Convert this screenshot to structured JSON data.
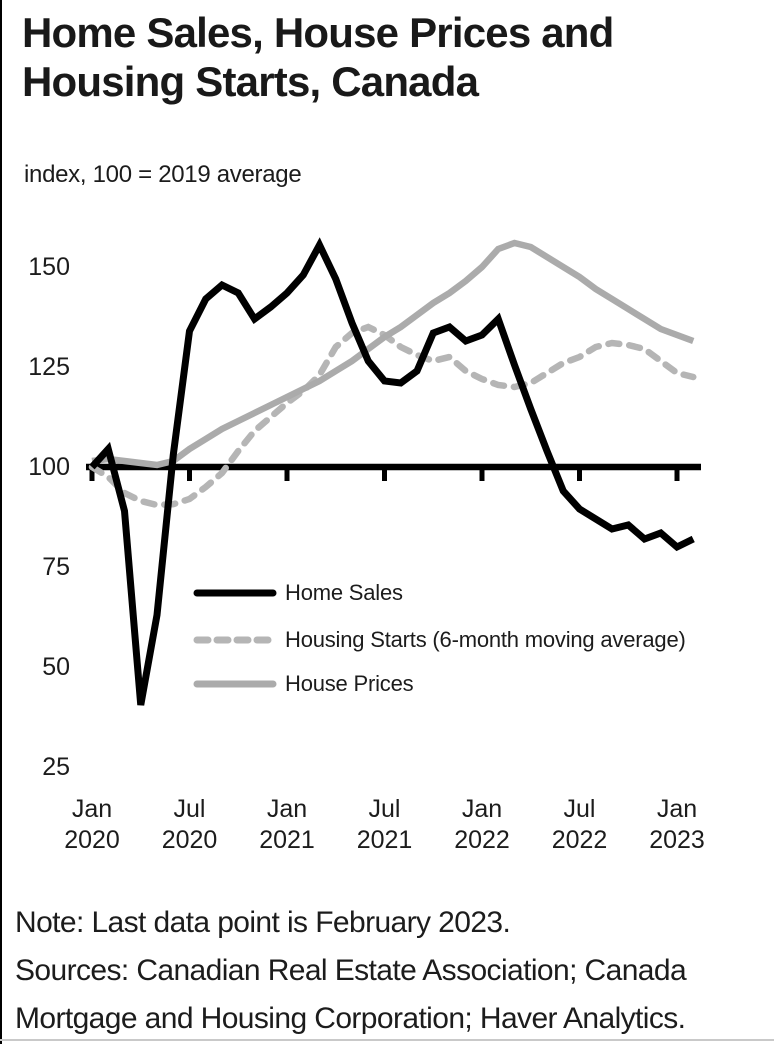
{
  "header": {
    "title_line1": "Home Sales, House Prices and",
    "title_line2": "Housing Starts, Canada",
    "subtitle": "index, 100 = 2019 average"
  },
  "footer": {
    "note": "Note: Last data point is February 2023.",
    "sources_line1": "Sources: Canadian Real Estate Association; Canada",
    "sources_line2": "Mortgage and Housing Corporation; Haver Analytics."
  },
  "colors": {
    "text": "#1c1c1c",
    "home_sales": "#000000",
    "housing_starts": "#b5b5b5",
    "house_prices": "#ababab",
    "axis": "#000000",
    "bottom_rule": "#c9c9c9"
  },
  "chart_data": {
    "type": "line",
    "title": "Home Sales, House Prices and Housing Starts, Canada",
    "unit_label": "index, 100 = 2019 average",
    "baseline": 100,
    "ylim": [
      25,
      160
    ],
    "grid": false,
    "legend_position": "inside-bottom-left",
    "y_ticks": [
      150,
      125,
      100,
      75,
      50,
      25
    ],
    "x_ticks": [
      {
        "month": "Jan",
        "year": "2020"
      },
      {
        "month": "Jul",
        "year": "2020"
      },
      {
        "month": "Jan",
        "year": "2021"
      },
      {
        "month": "Jul",
        "year": "2021"
      },
      {
        "month": "Jan",
        "year": "2022"
      },
      {
        "month": "Jul",
        "year": "2022"
      },
      {
        "month": "Jan",
        "year": "2023"
      }
    ],
    "months": [
      "2020-01",
      "2020-02",
      "2020-03",
      "2020-04",
      "2020-05",
      "2020-06",
      "2020-07",
      "2020-08",
      "2020-09",
      "2020-10",
      "2020-11",
      "2020-12",
      "2021-01",
      "2021-02",
      "2021-03",
      "2021-04",
      "2021-05",
      "2021-06",
      "2021-07",
      "2021-08",
      "2021-09",
      "2021-10",
      "2021-11",
      "2021-12",
      "2022-01",
      "2022-02",
      "2022-03",
      "2022-04",
      "2022-05",
      "2022-06",
      "2022-07",
      "2022-08",
      "2022-09",
      "2022-10",
      "2022-11",
      "2022-12",
      "2023-01",
      "2023-02"
    ],
    "series": [
      {
        "name": "Home Sales",
        "style": "solid",
        "color_key": "home_sales",
        "values": [
          100,
          104.5,
          89,
          40.5,
          63,
          103,
          134,
          142,
          145.5,
          143.5,
          137,
          140,
          143.5,
          148,
          155.5,
          147,
          136,
          126.5,
          121.5,
          121,
          124,
          133.5,
          135,
          131.5,
          133,
          137,
          125.5,
          114.5,
          104,
          94,
          89.5,
          87,
          84.5,
          85.5,
          82,
          83.5,
          80,
          82
        ]
      },
      {
        "name": "Housing Starts (6-month moving average)",
        "style": "dashed",
        "color_key": "housing_starts",
        "values": [
          100,
          97.5,
          93.5,
          91.5,
          90.5,
          90.7,
          92,
          95,
          98.5,
          104,
          109,
          112.5,
          116,
          119,
          123,
          130,
          133.5,
          135,
          133,
          130,
          128,
          126.5,
          127.5,
          124,
          122,
          120.5,
          120,
          121,
          123.5,
          126,
          127.5,
          130,
          131,
          130.5,
          129.5,
          126.5,
          123.5,
          122.5
        ]
      },
      {
        "name": "House Prices",
        "style": "solid",
        "color_key": "house_prices",
        "values": [
          101.5,
          102,
          101.5,
          101,
          100.5,
          101.5,
          104.5,
          107,
          109.5,
          111.5,
          113.5,
          115.5,
          117.5,
          119.5,
          121.5,
          124,
          126.5,
          129.5,
          132.5,
          135,
          138,
          141,
          143.5,
          146.5,
          150,
          154.5,
          156,
          155,
          152.5,
          150,
          147.5,
          144.5,
          142,
          139.5,
          137,
          134.5,
          133,
          131.5
        ]
      }
    ]
  }
}
